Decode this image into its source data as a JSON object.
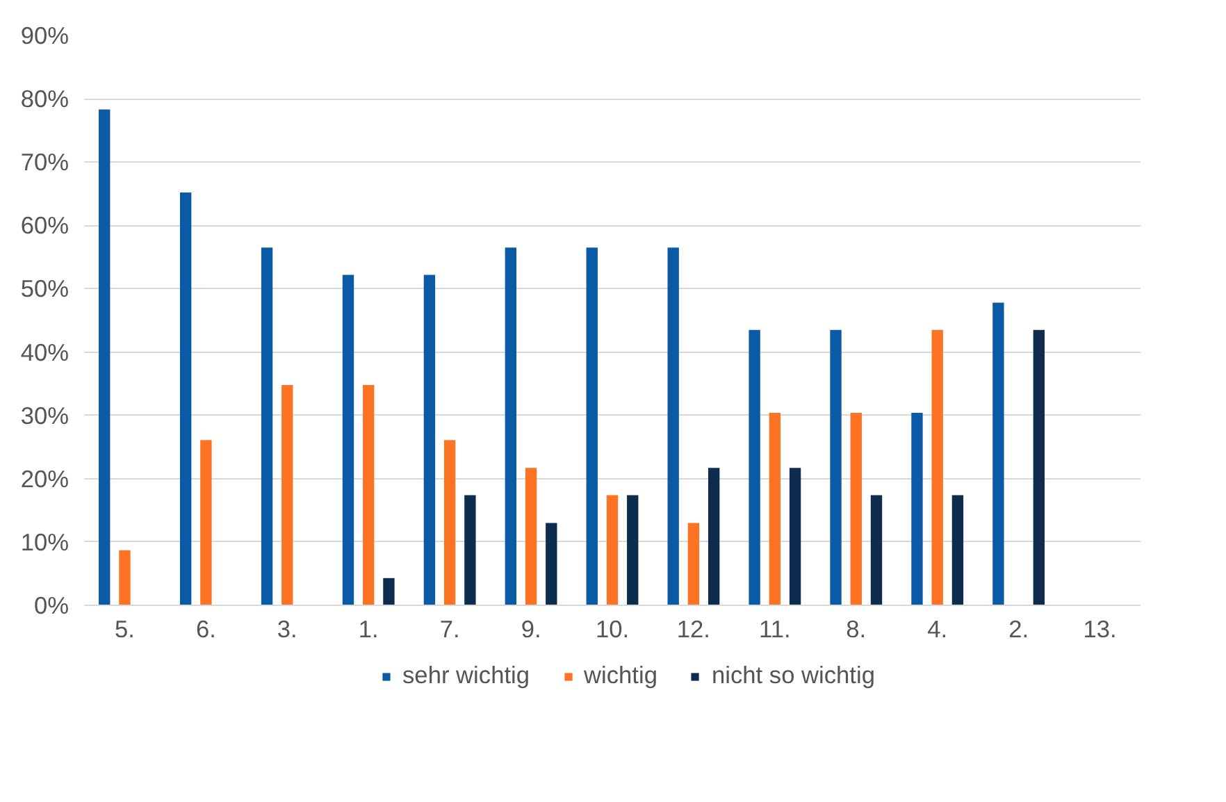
{
  "chart_data": {
    "type": "bar",
    "categories": [
      "5.",
      "6.",
      "3.",
      "1.",
      "7.",
      "9.",
      "10.",
      "12.",
      "11.",
      "8.",
      "4.",
      "2.",
      "13."
    ],
    "series": [
      {
        "name": "sehr wichtig",
        "color": "#0b5aa5",
        "values": [
          78.3,
          65.2,
          56.5,
          52.2,
          52.2,
          56.5,
          56.5,
          56.5,
          43.5,
          43.5,
          30.4,
          47.8,
          null
        ]
      },
      {
        "name": "wichtig",
        "color": "#fc7323",
        "values": [
          8.7,
          26.1,
          34.8,
          34.8,
          26.1,
          21.7,
          17.4,
          13.0,
          30.4,
          30.4,
          43.5,
          null,
          null
        ]
      },
      {
        "name": "nicht so wichtig",
        "color": "#0e2d4e",
        "values": [
          null,
          null,
          null,
          4.3,
          17.4,
          13.0,
          17.4,
          21.7,
          21.7,
          17.4,
          17.4,
          43.5,
          null
        ]
      }
    ],
    "ylim": [
      0,
      90
    ],
    "yticks": [
      {
        "value": 0,
        "label": "0%"
      },
      {
        "value": 10,
        "label": "10%"
      },
      {
        "value": 20,
        "label": "20%"
      },
      {
        "value": 30,
        "label": "30%"
      },
      {
        "value": 40,
        "label": "40%"
      },
      {
        "value": 50,
        "label": "50%"
      },
      {
        "value": 60,
        "label": "60%"
      },
      {
        "value": 70,
        "label": "70%"
      },
      {
        "value": 80,
        "label": "80%"
      },
      {
        "value": 90,
        "label": "90%"
      }
    ],
    "grid": "y",
    "legend": "bottom"
  }
}
